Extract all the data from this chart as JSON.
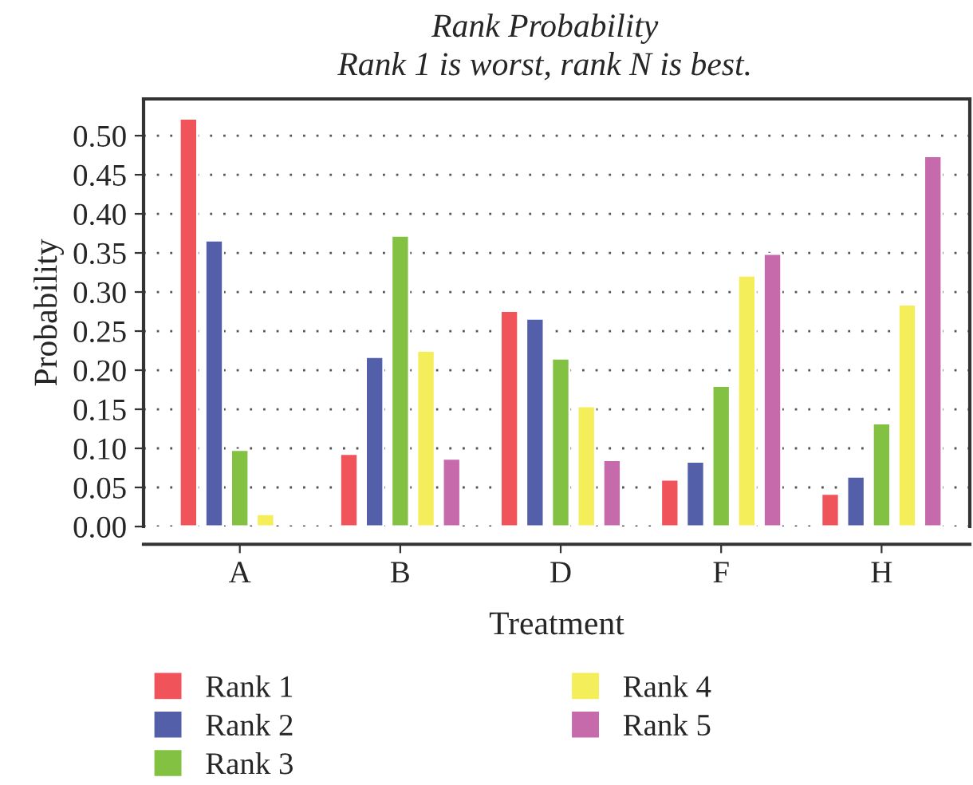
{
  "chart_data": {
    "type": "bar",
    "title": "Rank Probability",
    "subtitle": "Rank 1 is worst, rank N is best.",
    "xlabel": "Treatment",
    "ylabel": "Probability",
    "categories": [
      "A",
      "B",
      "D",
      "F",
      "H"
    ],
    "series": [
      {
        "name": "Rank 1",
        "color": "#f0545a",
        "values": [
          0.522,
          0.093,
          0.276,
          0.06,
          0.042
        ]
      },
      {
        "name": "Rank 2",
        "color": "#535fa8",
        "values": [
          0.366,
          0.217,
          0.266,
          0.083,
          0.064
        ]
      },
      {
        "name": "Rank 3",
        "color": "#82c141",
        "values": [
          0.098,
          0.372,
          0.215,
          0.18,
          0.132
        ]
      },
      {
        "name": "Rank 4",
        "color": "#f4ee5a",
        "values": [
          0.016,
          0.225,
          0.154,
          0.321,
          0.284
        ]
      },
      {
        "name": "Rank 5",
        "color": "#c66aab",
        "values": [
          null,
          0.087,
          0.085,
          0.349,
          0.474
        ]
      }
    ],
    "ylim": [
      0,
      0.547
    ],
    "yticks": [
      {
        "value": 0,
        "label": "0.00"
      },
      {
        "value": 0.05,
        "label": "0.05"
      },
      {
        "value": 0.1,
        "label": "0.10"
      },
      {
        "value": 0.15,
        "label": "0.15"
      },
      {
        "value": 0.2,
        "label": "0.20"
      },
      {
        "value": 0.25,
        "label": "0.25"
      },
      {
        "value": 0.3,
        "label": "0.30"
      },
      {
        "value": 0.35,
        "label": "0.35"
      },
      {
        "value": 0.4,
        "label": "0.40"
      },
      {
        "value": 0.45,
        "label": "0.45"
      },
      {
        "value": 0.5,
        "label": "0.50"
      }
    ],
    "grid": "y",
    "legend": "bottom"
  }
}
